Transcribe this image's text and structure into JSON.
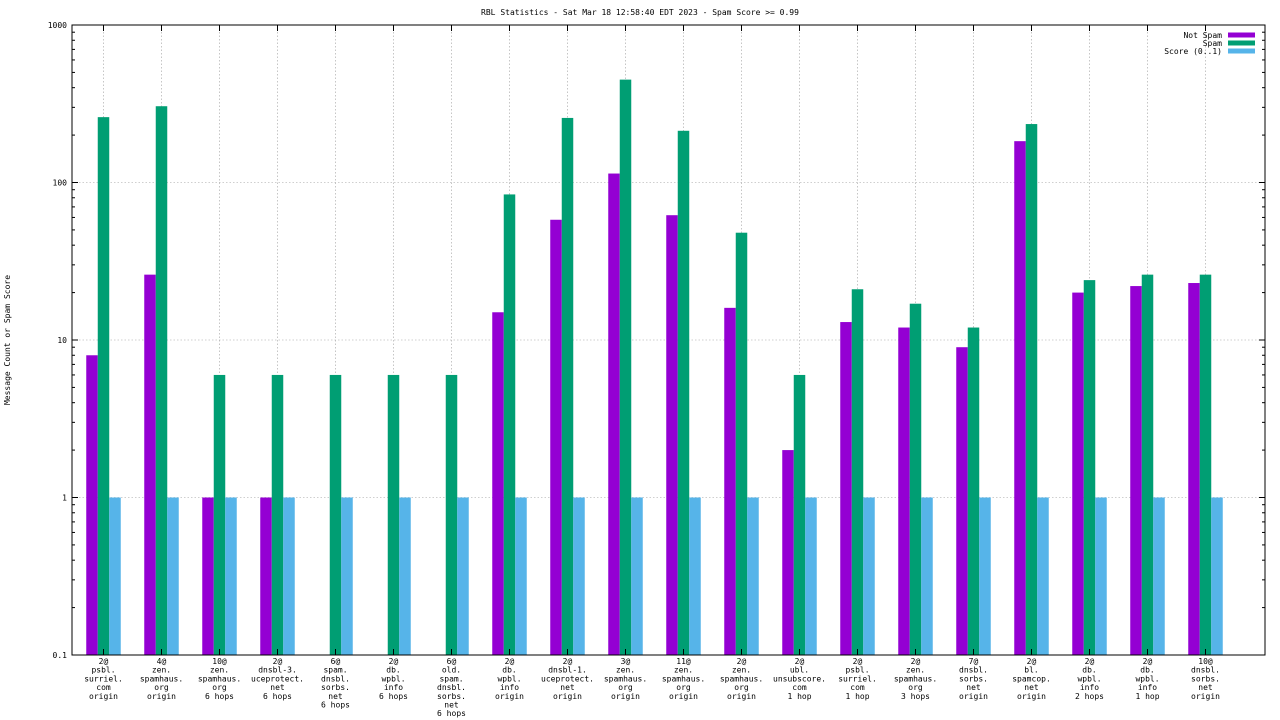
{
  "chart_data": {
    "type": "bar",
    "title": "RBL Statistics - Sat Mar 18 12:58:40 EDT 2023 - Spam Score >= 0.99",
    "ylabel": "Message Count or Spam Score",
    "xlabel": "",
    "yscale": "log",
    "ylim": [
      0.1,
      1000
    ],
    "yticks": [
      "0.1",
      "1",
      "10",
      "100",
      "1000"
    ],
    "grid": true,
    "legend_position": "top-right",
    "categories": [
      [
        "2@",
        "psbl.",
        "surriel.",
        "com",
        "origin"
      ],
      [
        "4@",
        "zen.",
        "spamhaus.",
        "org",
        "origin"
      ],
      [
        "10@",
        "zen.",
        "spamhaus.",
        "org",
        "6 hops"
      ],
      [
        "2@",
        "dnsbl-3.",
        "uceprotect.",
        "net",
        "6 hops"
      ],
      [
        "6@",
        "spam.",
        "dnsbl.",
        "sorbs.",
        "net",
        "6 hops"
      ],
      [
        "2@",
        "db.",
        "wpbl.",
        "info",
        "6 hops"
      ],
      [
        "6@",
        "old.",
        "spam.",
        "dnsbl.",
        "sorbs.",
        "net",
        "6 hops"
      ],
      [
        "2@",
        "db.",
        "wpbl.",
        "info",
        "origin"
      ],
      [
        "2@",
        "dnsbl-1.",
        "uceprotect.",
        "net",
        "origin"
      ],
      [
        "3@",
        "zen.",
        "spamhaus.",
        "org",
        "origin"
      ],
      [
        "11@",
        "zen.",
        "spamhaus.",
        "org",
        "origin"
      ],
      [
        "2@",
        "zen.",
        "spamhaus.",
        "org",
        "origin"
      ],
      [
        "2@",
        "ubl.",
        "unsubscore.",
        "com",
        "1 hop"
      ],
      [
        "2@",
        "psbl.",
        "surriel.",
        "com",
        "1 hop"
      ],
      [
        "2@",
        "zen.",
        "spamhaus.",
        "org",
        "3 hops"
      ],
      [
        "7@",
        "dnsbl.",
        "sorbs.",
        "net",
        "origin"
      ],
      [
        "2@",
        "bl.",
        "spamcop.",
        "net",
        "origin"
      ],
      [
        "2@",
        "db.",
        "wpbl.",
        "info",
        "2 hops"
      ],
      [
        "2@",
        "db.",
        "wpbl.",
        "info",
        "1 hop"
      ],
      [
        "10@",
        "dnsbl.",
        "sorbs.",
        "net",
        "origin"
      ]
    ],
    "series": [
      {
        "name": "Not Spam",
        "color": "#9400d3",
        "values": [
          8,
          26,
          1,
          1,
          null,
          null,
          null,
          15,
          58,
          114,
          62,
          16,
          2,
          13,
          12,
          9,
          183,
          20,
          22,
          23
        ]
      },
      {
        "name": "Spam",
        "color": "#009e73",
        "values": [
          260,
          305,
          6,
          6,
          6,
          6,
          6,
          84,
          257,
          450,
          213,
          48,
          6,
          21,
          17,
          12,
          235,
          24,
          26,
          26
        ]
      },
      {
        "name": "Score (0..1)",
        "color": "#56b4e9",
        "values": [
          1,
          1,
          1,
          1,
          1,
          1,
          1,
          1,
          1,
          1,
          1,
          1,
          1,
          1,
          1,
          1,
          1,
          1,
          1,
          1
        ]
      }
    ]
  }
}
